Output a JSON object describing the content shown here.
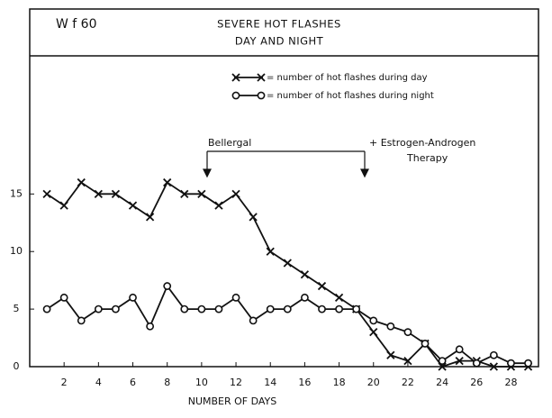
{
  "chart_data": {
    "type": "line",
    "panel_label": "W f 60",
    "title": "SEVERE HOT FLASHES",
    "subtitle": "DAY AND NIGHT",
    "xlabel": "NUMBER OF DAYS",
    "annotations": [
      "Bellergal",
      "+ Estrogen-Androgen",
      "Therapy"
    ],
    "x": [
      1,
      2,
      3,
      4,
      5,
      6,
      7,
      8,
      9,
      10,
      11,
      12,
      13,
      14,
      15,
      16,
      17,
      18,
      19,
      20,
      21,
      22,
      23,
      24,
      25,
      26,
      27,
      28,
      29
    ],
    "series": [
      {
        "name": "= number of hot flashes during day",
        "marker": "x",
        "color": "#111",
        "values": [
          15,
          14,
          16,
          15,
          15,
          14,
          13,
          16,
          15,
          15,
          14,
          15,
          13,
          10,
          9,
          8,
          7,
          6,
          5,
          3,
          1,
          0.5,
          2,
          0,
          0.5,
          0.5,
          0,
          0,
          0
        ]
      },
      {
        "name": "= number of hot flashes during night",
        "marker": "o",
        "color": "#111",
        "values": [
          5,
          6,
          4,
          5,
          5,
          6,
          3.5,
          7,
          5,
          5,
          5,
          6,
          4,
          5,
          5,
          6,
          5,
          5,
          5,
          4,
          3.5,
          3,
          2,
          0.5,
          1.5,
          0.3,
          1,
          0.3,
          0.3
        ]
      }
    ],
    "xlim": [
      0,
      29.6
    ],
    "xticks": [
      2,
      4,
      6,
      8,
      10,
      12,
      14,
      16,
      18,
      20,
      22,
      24,
      26,
      28
    ],
    "ylim": [
      0,
      27
    ],
    "yticks": [
      0,
      5,
      10,
      15
    ]
  }
}
